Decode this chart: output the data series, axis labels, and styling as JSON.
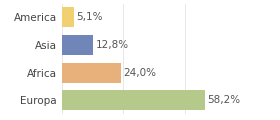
{
  "categories": [
    "Europa",
    "Africa",
    "Asia",
    "America"
  ],
  "values": [
    58.2,
    24.0,
    12.8,
    5.1
  ],
  "labels": [
    "58,2%",
    "24,0%",
    "12,8%",
    "5,1%"
  ],
  "bar_colors": [
    "#b5c98a",
    "#e8b07a",
    "#7085b8",
    "#f0d070"
  ],
  "background_color": "#ffffff",
  "xlim": [
    0,
    75
  ],
  "bar_height": 0.72,
  "label_fontsize": 7.5,
  "tick_fontsize": 7.5
}
